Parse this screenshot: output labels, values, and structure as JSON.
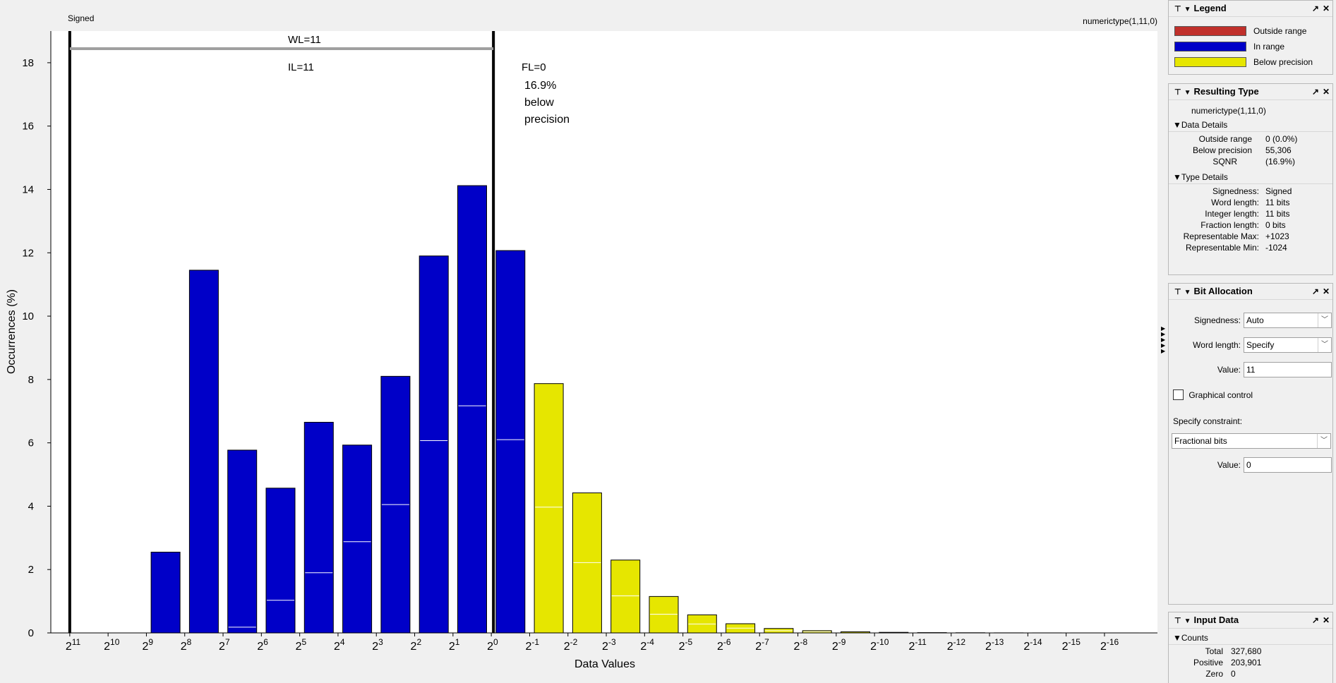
{
  "plot": {
    "signedness_label": "Signed",
    "type_label": "numerictype(1,11,0)",
    "wl_label": "WL=11",
    "il_label": "IL=11",
    "fl_label": "FL=0",
    "below_precision_note": [
      "16.9%",
      "below",
      "precision"
    ]
  },
  "chart_data": {
    "type": "bar",
    "xlabel": "Data Values",
    "ylabel": "Occurrences (%)",
    "ylim": [
      0,
      19
    ],
    "yticks": [
      0,
      2,
      4,
      6,
      8,
      10,
      12,
      14,
      16,
      18
    ],
    "x_exponents": [
      11,
      10,
      9,
      8,
      7,
      6,
      5,
      4,
      3,
      2,
      1,
      0,
      -1,
      -2,
      -3,
      -4,
      -5,
      -6,
      -7,
      -8,
      -9,
      -10,
      -11,
      -12,
      -13,
      -14,
      -15,
      -16
    ],
    "tick_base": "2",
    "values": [
      0,
      0,
      2.55,
      11.45,
      5.77,
      4.57,
      6.65,
      5.93,
      8.1,
      11.9,
      14.12,
      12.07,
      7.87,
      4.42,
      2.3,
      1.15,
      0.57,
      0.29,
      0.14,
      0.07,
      0.035,
      0.018,
      0.009,
      0.005,
      0.002,
      0.001,
      0.0005,
      0.0003
    ],
    "positive_marks": [
      0,
      0,
      0,
      0,
      0.18,
      1.03,
      1.9,
      2.88,
      4.05,
      6.07,
      7.17,
      6.1,
      3.97,
      2.22,
      1.17,
      0.59,
      0.28,
      0.15,
      0.07,
      0.035,
      0.018,
      0.009,
      0.004,
      0.002,
      0.001,
      0.0005,
      0.0002,
      0.0001
    ],
    "categories": [
      "in_range",
      "in_range",
      "in_range",
      "in_range",
      "in_range",
      "in_range",
      "in_range",
      "in_range",
      "in_range",
      "in_range",
      "in_range",
      "in_range",
      "below_precision",
      "below_precision",
      "below_precision",
      "below_precision",
      "below_precision",
      "below_precision",
      "below_precision",
      "below_precision",
      "below_precision",
      "below_precision",
      "below_precision",
      "below_precision",
      "below_precision",
      "below_precision",
      "below_precision",
      "below_precision"
    ],
    "msb_exponent": 11,
    "lsb_exponent": 0,
    "grid": false
  },
  "colors": {
    "outside_range": "#c0302b",
    "in_range": "#0000c8",
    "below_precision": "#e6e600",
    "wl_bar": "#a0a0a0"
  },
  "legend": {
    "title": "Legend",
    "items": [
      {
        "label": "Outside range",
        "color": "#c0302b"
      },
      {
        "label": "In range",
        "color": "#0000c8"
      },
      {
        "label": "Below precision",
        "color": "#e6e600"
      }
    ]
  },
  "resulting_type": {
    "title": "Resulting Type",
    "type_string": "numerictype(1,11,0)",
    "data_details_title": "Data Details",
    "data_details": [
      {
        "k": "Outside range",
        "v": "0 (0.0%)"
      },
      {
        "k": "Below precision",
        "v": "55,306"
      },
      {
        "k": "SQNR",
        "v": "(16.9%)"
      }
    ],
    "type_details_title": "Type Details",
    "type_details": [
      {
        "k": "Signedness:",
        "v": "Signed"
      },
      {
        "k": "Word length:",
        "v": "11 bits"
      },
      {
        "k": "Integer length:",
        "v": "11 bits"
      },
      {
        "k": "Fraction length:",
        "v": "0 bits"
      },
      {
        "k": "Representable Max:",
        "v": "+1023"
      },
      {
        "k": "Representable Min:",
        "v": "-1024"
      }
    ]
  },
  "bit_allocation": {
    "title": "Bit Allocation",
    "signedness_label": "Signedness:",
    "signedness_value": "Auto",
    "word_length_label": "Word length:",
    "word_length_value": "Specify",
    "value_label": "Value:",
    "value": "11",
    "graphical_control_label": "Graphical control",
    "constraint_label": "Specify constraint:",
    "constraint_value": "Fractional bits",
    "constraint_value_label": "Value:",
    "constraint_value_input": "0"
  },
  "input_data": {
    "title": "Input Data",
    "counts_title": "Counts",
    "counts": [
      {
        "k": "Total",
        "v": "327,680"
      },
      {
        "k": "Positive",
        "v": "203,901"
      },
      {
        "k": "Zero",
        "v": "0"
      }
    ]
  },
  "icons": {
    "pin": "pin-icon",
    "collapse": "collapse-triangle-icon",
    "undock": "undock-icon",
    "close": "close-icon"
  }
}
